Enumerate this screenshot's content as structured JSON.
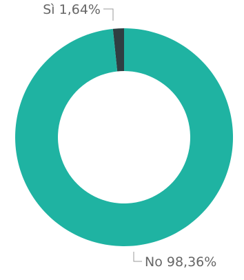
{
  "chart_data": {
    "type": "pie",
    "variant": "donut",
    "categories": [
      "Sì",
      "No"
    ],
    "values": [
      1.64,
      98.36
    ],
    "unit": "%",
    "data_labels": [
      "Sì 1,64%",
      "No 98,36%"
    ],
    "colors": [
      "#2f3f42",
      "#1fb3a2"
    ],
    "legend": "none"
  }
}
